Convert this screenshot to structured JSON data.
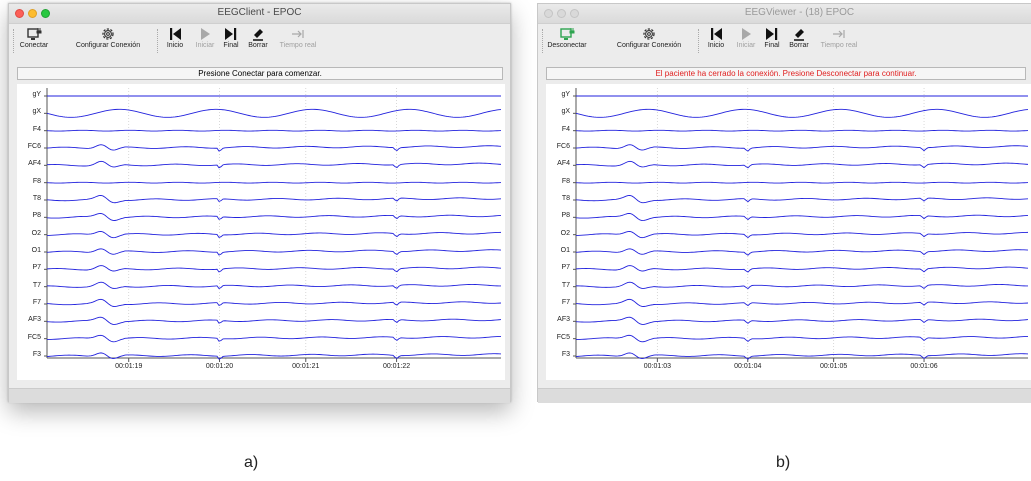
{
  "panels": [
    {
      "title": "EEGClient - EPOC",
      "status": "Presione Conectar para comenzar.",
      "status_color": "#111111",
      "caption": "a)",
      "toolbar": {
        "connect": "Conectar",
        "config": "Configurar Conexión",
        "start": "Inicio",
        "play": "Iniciar",
        "end": "Final",
        "erase": "Borrar",
        "realtime": "Tiempo real"
      },
      "time_ticks": [
        "00:01:19",
        "00:01:20",
        "00:01:21",
        "00:01:22"
      ]
    },
    {
      "title": "EEGViewer - (18) EPOC",
      "status": "El paciente ha cerrado la conexión. Presione Desconectar para continuar.",
      "status_color": "#e02020",
      "caption": "b)",
      "toolbar": {
        "connect": "Desconectar",
        "config": "Configurar Conexión",
        "start": "Inicio",
        "play": "Iniciar",
        "end": "Final",
        "erase": "Borrar",
        "realtime": "Tiempo real"
      },
      "time_ticks": [
        "00:01:03",
        "00:01:04",
        "00:01:05",
        "00:01:06"
      ]
    }
  ],
  "channels": [
    "gY",
    "gX",
    "F4",
    "FC6",
    "AF4",
    "F8",
    "T8",
    "P8",
    "O2",
    "O1",
    "P7",
    "T7",
    "F7",
    "AF3",
    "FC5",
    "F3"
  ],
  "colors": {
    "trace": "#2222dd",
    "connect_icon": "#2ea44f",
    "grid": "#cfcfcf"
  },
  "icons": {
    "connect": "monitor-plug-icon",
    "config": "gear-icon",
    "start": "skip-back-icon",
    "play": "play-icon",
    "end": "skip-forward-icon",
    "erase": "eraser-icon",
    "realtime": "arrow-to-bar-icon"
  }
}
